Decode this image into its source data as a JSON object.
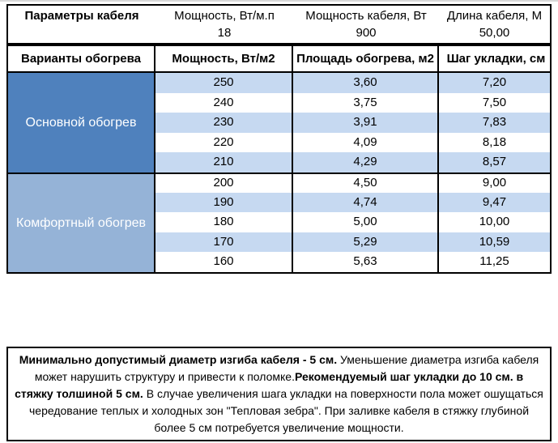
{
  "colors": {
    "group1": "#4f81bd",
    "group2": "#95b3d7",
    "stripe": "#c6d9f1",
    "border": "#000000"
  },
  "params_header": {
    "title": "Параметры кабеля",
    "power_per_meter": {
      "label": "Мощность, Вт/м.п",
      "value": "18"
    },
    "cable_power": {
      "label": "Мощность кабеля, Вт",
      "value": "900"
    },
    "cable_length": {
      "label": "Длина кабеля, М",
      "value": "50,00"
    }
  },
  "table": {
    "headers": [
      "Варианты обогрева",
      "Мощность, Вт/м2",
      "Площадь обогрева, м2",
      "Шаг укладки, см"
    ],
    "groups": [
      {
        "label": "Основной обогрев",
        "color": "#4f81bd",
        "rows": [
          [
            "250",
            "3,60",
            "7,20"
          ],
          [
            "240",
            "3,75",
            "7,50"
          ],
          [
            "230",
            "3,91",
            "7,83"
          ],
          [
            "220",
            "4,09",
            "8,18"
          ],
          [
            "210",
            "4,29",
            "8,57"
          ]
        ]
      },
      {
        "label": "Комфортный обогрев",
        "color": "#95b3d7",
        "rows": [
          [
            "200",
            "4,50",
            "9,00"
          ],
          [
            "190",
            "4,74",
            "9,47"
          ],
          [
            "180",
            "5,00",
            "10,00"
          ],
          [
            "170",
            "5,29",
            "10,59"
          ],
          [
            "160",
            "5,63",
            "11,25"
          ]
        ]
      }
    ]
  },
  "note": {
    "runs": [
      {
        "text": "Минимально допустимый диаметр изгиба кабеля - 5 см. ",
        "bold": true
      },
      {
        "text": " Уменьшение диаметра изгиба кабеля может нарушить структуру и привести к поломке.",
        "bold": false
      },
      {
        "text": "Рекомендуемый шаг укладки до 10 см. в стяжку толшиной 5 см.",
        "bold": true
      },
      {
        "text": " В  случае увеличения шага укладки на поверхности пола может ошущаться чередование теплых и холодных зон \"Тепловая зебра\". При заливке кабеля в стяжку глубиной более 5 см потребуется увеличение мощности.",
        "bold": false
      }
    ]
  }
}
